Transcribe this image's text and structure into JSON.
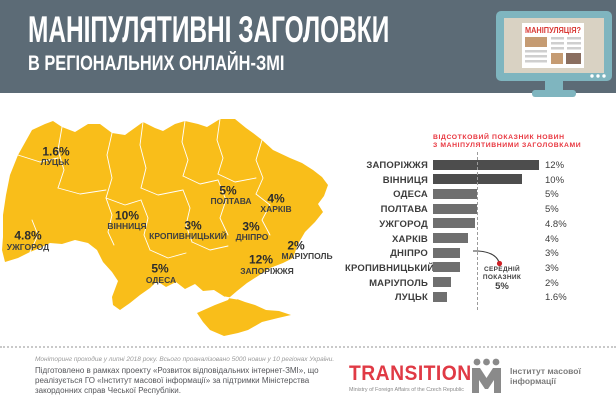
{
  "header": {
    "title_line1": "МАНІПУЛЯТИВНІ ЗАГОЛОВКИ",
    "title_line2": "В РЕГІОНАЛЬНИХ ОНЛАЙН-ЗМІ",
    "monitor_label": "МАНІПУЛЯЦІЯ?"
  },
  "map": {
    "regions": [
      {
        "city": "ЛУЦЬК",
        "value": "1.6%"
      },
      {
        "city": "УЖГОРОД",
        "value": "4.8%"
      },
      {
        "city": "ВІННИЦЯ",
        "value": "10%"
      },
      {
        "city": "ПОЛТАВА",
        "value": "5%"
      },
      {
        "city": "ХАРКІВ",
        "value": "4%"
      },
      {
        "city": "КРОПИВНИЦЬКИЙ",
        "value": "3%"
      },
      {
        "city": "ДНІПРО",
        "value": "3%"
      },
      {
        "city": "МАРІУПОЛЬ",
        "value": "2%"
      },
      {
        "city": "ЗАПОРІЖЖЯ",
        "value": "12%"
      },
      {
        "city": "ОДЕСА",
        "value": "5%"
      }
    ]
  },
  "chart_data": {
    "type": "bar",
    "title_line1": "ВІДСОТКОВИЙ ПОКАЗНИК НОВИН",
    "title_line2": "З МАНІПУЛЯТИВНИМИ ЗАГОЛОВКАМИ",
    "categories": [
      "ЗАПОРІЖЖЯ",
      "ВІННИЦЯ",
      "ОДЕСА",
      "ПОЛТАВА",
      "УЖГОРОД",
      "ХАРКІВ",
      "ДНІПРО",
      "КРОПИВНИЦЬКИЙ",
      "МАРІУПОЛЬ",
      "ЛУЦЬК"
    ],
    "values": [
      12,
      10,
      5,
      5,
      4.8,
      4,
      3,
      3,
      2,
      1.6
    ],
    "value_labels": [
      "12%",
      "10%",
      "5%",
      "5%",
      "4.8%",
      "4%",
      "3%",
      "3%",
      "2%",
      "1.6%"
    ],
    "xlim": [
      0,
      13
    ],
    "grid": false,
    "legend": false,
    "average": {
      "value": 5,
      "label_lines": [
        "СЕРЕДНІЙ",
        "ПОКАЗНИК"
      ],
      "value_label": "5%"
    },
    "highlight_count": 2
  },
  "footer": {
    "note": "Моніторинг проходив у липні 2018 року. Всього проаналізовано 5000 новин у 10 регіонах України.",
    "description": "Підготовлено в рамках проекту «Розвиток відповідальних інтернет-ЗМІ», що реалізується ГО «Інститут масової інформації» за підтримки Міністерства закордонних справ Чеської Республіки.",
    "transition_logo": "TRANSITION",
    "transition_sub": "Ministry of Foreign Affairs of the Czech Republic",
    "imi_line1": "Інститут масової",
    "imi_line2": "інформації"
  },
  "colors": {
    "header_bg": "#5c6b76",
    "map_yellow": "#f9be1a",
    "bar_highlight": "#4d4d4d",
    "bar_normal": "#6f6f6f",
    "accent_red": "#e8353e",
    "monitor_teal": "#7fb5bf",
    "avg_dot_red": "#cf2127"
  }
}
